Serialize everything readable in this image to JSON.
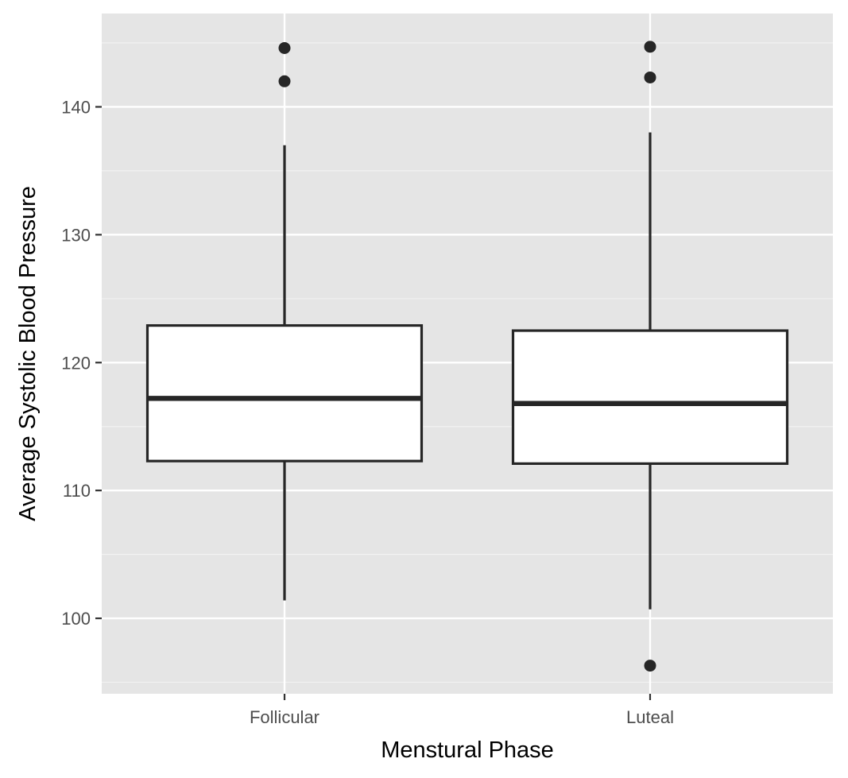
{
  "chart_data": {
    "type": "boxplot",
    "title": "",
    "xlabel": "Menstural Phase",
    "ylabel": "Average Systolic Blood Pressure",
    "categories": [
      "Follicular",
      "Luteal"
    ],
    "ylim": [
      94.1,
      147.3
    ],
    "yticks": [
      100,
      110,
      120,
      130,
      140
    ],
    "ytick_labels": [
      "100",
      "110",
      "120",
      "130",
      "140"
    ],
    "grid": true,
    "legend": "none",
    "boxes": [
      {
        "category": "Follicular",
        "whisker_low": 101.4,
        "q1": 112.3,
        "median": 117.2,
        "q3": 122.9,
        "whisker_high": 137.0,
        "outliers": [
          142.0,
          144.6
        ]
      },
      {
        "category": "Luteal",
        "whisker_low": 100.7,
        "q1": 112.1,
        "median": 116.8,
        "q3": 122.5,
        "whisker_high": 138.0,
        "outliers": [
          96.3,
          142.3,
          144.7
        ]
      }
    ],
    "colors": {
      "panel_background": "#e5e5e5",
      "grid_major": "#ffffff",
      "grid_minor": "#f2f2f2",
      "box_fill": "#ffffff",
      "box_line": "#262626",
      "tick_text": "#4d4d4d"
    }
  }
}
